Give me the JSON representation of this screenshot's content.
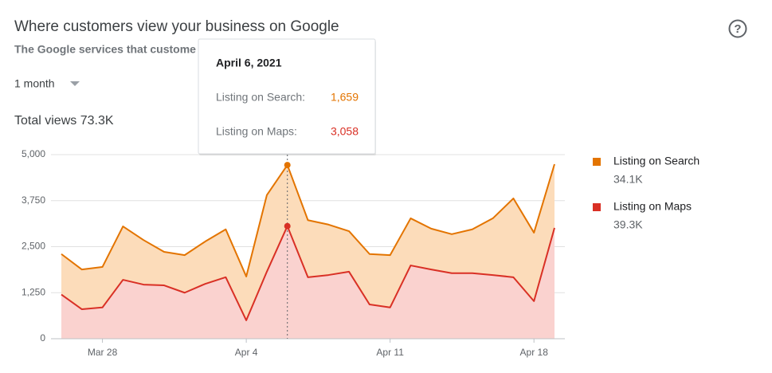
{
  "header": {
    "title": "Where customers view your business on Google",
    "subtitle": "The Google services that custome",
    "range": "1 month",
    "total": "Total views 73.3K"
  },
  "chart_data": {
    "type": "stacked_area",
    "categories": [
      null,
      null,
      "Mar 28",
      null,
      null,
      null,
      null,
      null,
      null,
      "Apr 4",
      null,
      null,
      null,
      null,
      null,
      null,
      "Apr 11",
      null,
      null,
      null,
      null,
      null,
      null,
      "Apr 18",
      null
    ],
    "series": [
      {
        "name": "Listing on Search",
        "total": "34.1K",
        "color": "#e37400",
        "fill": "#fcdcba",
        "values": [
          1100,
          1080,
          1100,
          1450,
          1210,
          910,
          1020,
          1150,
          1300,
          1190,
          2080,
          1659,
          1550,
          1370,
          1100,
          1370,
          1420,
          1280,
          1110,
          1060,
          1190,
          1540,
          2140,
          1860,
          1730
        ]
      },
      {
        "name": "Listing on Maps",
        "total": "39.3K",
        "color": "#d93025",
        "fill": "#fad2cf",
        "values": [
          1200,
          800,
          850,
          1600,
          1470,
          1450,
          1250,
          1490,
          1670,
          500,
          1820,
          3058,
          1670,
          1730,
          1820,
          930,
          850,
          1990,
          1880,
          1780,
          1780,
          1730,
          1670,
          1020,
          3010
        ]
      }
    ],
    "ylim": [
      0,
      5000
    ],
    "yticks": [
      0,
      {
        "value": 1250,
        "label": "1,250"
      },
      {
        "value": 2500,
        "label": "2,500"
      },
      {
        "value": 3750,
        "label": "3,750"
      },
      {
        "value": 5000,
        "label": "5,000"
      }
    ],
    "grid": true,
    "tooltip": {
      "title": "April 6, 2021",
      "x_index": 11,
      "items": [
        {
          "label": "Listing on Search:",
          "value_label": "1,659"
        },
        {
          "label": "Listing on Maps:",
          "value_label": "3,058"
        }
      ]
    }
  }
}
